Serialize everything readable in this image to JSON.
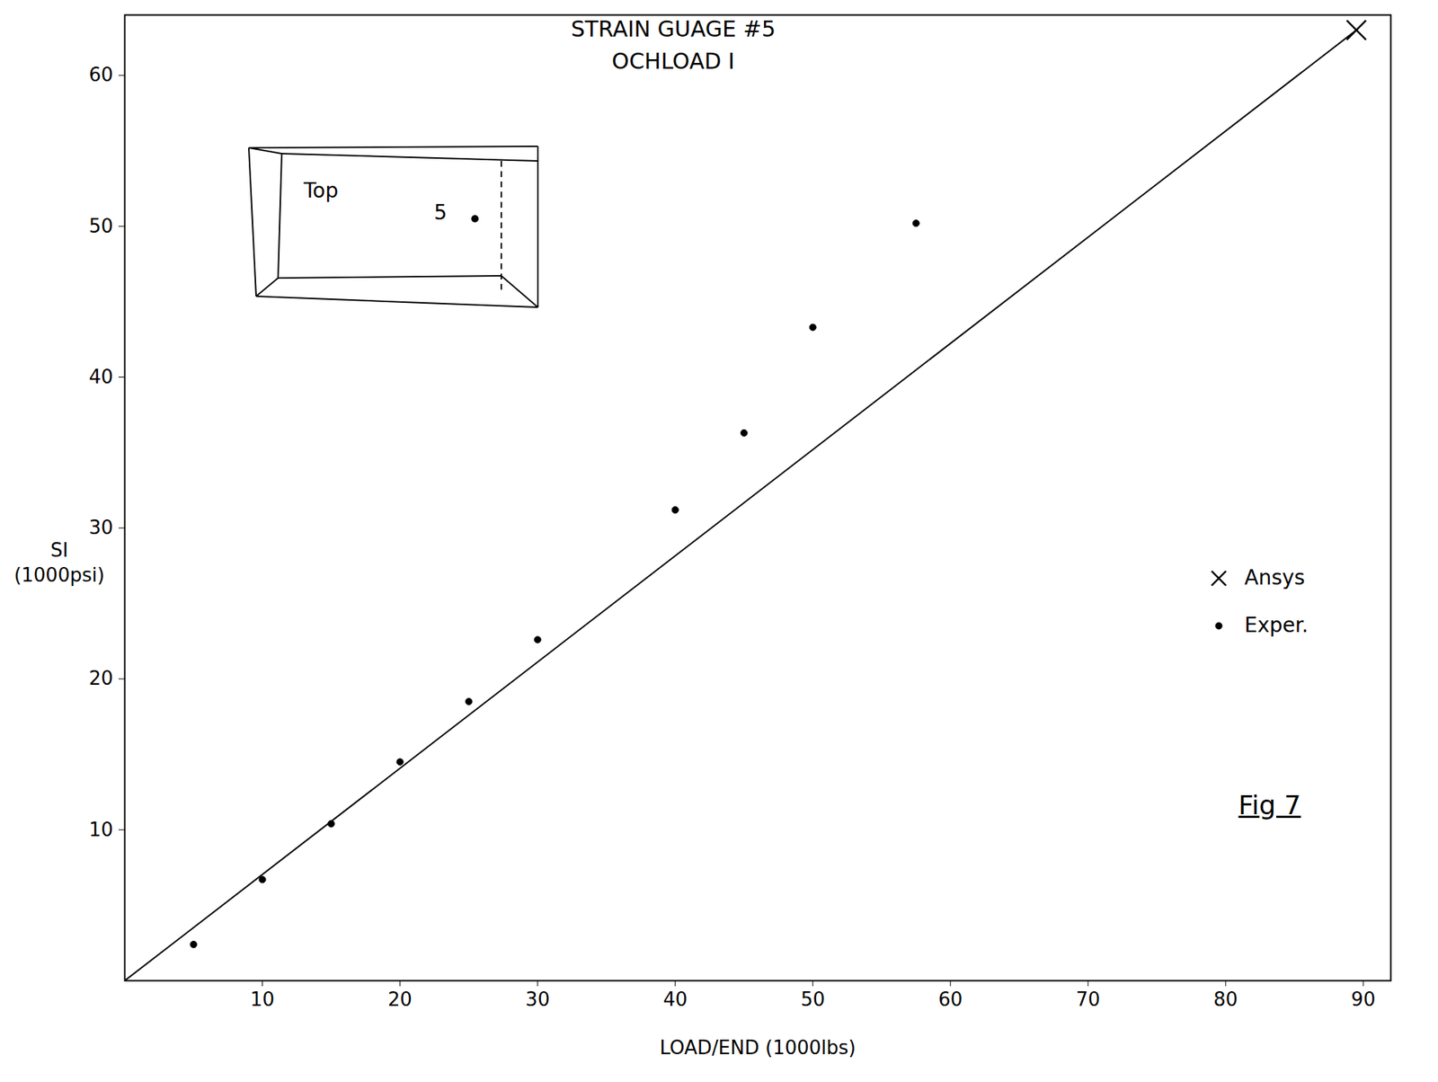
{
  "chart_data": {
    "type": "scatter",
    "title": "STRAIN GUAGE #5",
    "subtitle": "OCHLOAD I",
    "x_label": "LOAD/END (1000lbs)",
    "y_label": "SI (1000psi)",
    "xlim": [
      0,
      92
    ],
    "xticks": [
      10,
      20,
      30,
      40,
      50,
      60,
      70,
      80,
      90
    ],
    "ylim": [
      0,
      64
    ],
    "yticks": [
      10,
      20,
      30,
      40,
      50,
      60
    ],
    "grid": false,
    "legend": "right",
    "annotations": [
      "Fig 7"
    ],
    "inset_labels": [
      "Top",
      "5"
    ],
    "series": [
      {
        "type": "line",
        "color": "#000000",
        "line_style": "solid",
        "x": [
          0,
          89.5
        ],
        "values": [
          0,
          63
        ]
      },
      {
        "name": "Ansys",
        "type": "scatter",
        "marker": "x",
        "color": "#000000",
        "x": [
          89.5
        ],
        "values": [
          63
        ]
      },
      {
        "name": "Exper.",
        "type": "scatter",
        "marker": "dot",
        "color": "#000000",
        "x": [
          5,
          10,
          15,
          20,
          25,
          30,
          40,
          45,
          50,
          57.5
        ],
        "values": [
          2.4,
          6.7,
          10.4,
          14.5,
          18.5,
          22.6,
          31.2,
          36.3,
          43.3,
          50.2
        ]
      }
    ]
  }
}
